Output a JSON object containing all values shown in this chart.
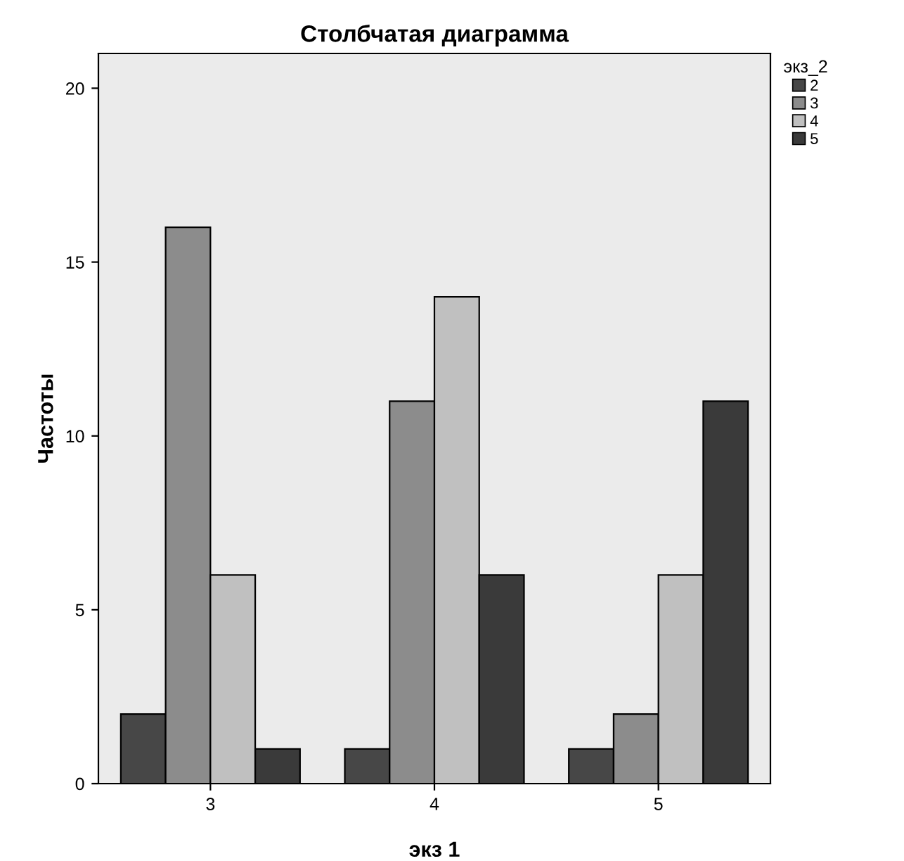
{
  "chart_data": {
    "type": "bar",
    "title": "Столбчатая диаграмма",
    "xlabel": "экз 1",
    "ylabel": "Частоты",
    "legend_title": "экз_2",
    "categories": [
      "3",
      "4",
      "5"
    ],
    "series": [
      {
        "name": "2",
        "color": "#474747",
        "values": [
          2,
          1,
          1
        ]
      },
      {
        "name": "3",
        "color": "#8c8c8c",
        "values": [
          16,
          11,
          2
        ]
      },
      {
        "name": "4",
        "color": "#c0c0c0",
        "values": [
          6,
          14,
          6
        ]
      },
      {
        "name": "5",
        "color": "#3a3a3a",
        "values": [
          1,
          6,
          11
        ]
      }
    ],
    "ylim": [
      0,
      21
    ],
    "yticks": [
      0,
      5,
      10,
      15,
      20
    ],
    "grid": false,
    "legend": "top right"
  }
}
